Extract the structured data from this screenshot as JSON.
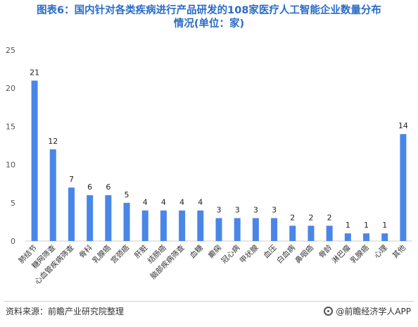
{
  "header": {
    "title_line1": "图表6：国内针对各类疾病进行产品研发的108家医疗人工智能企业数量分布",
    "title_line2": "情况(单位：家)"
  },
  "footer": {
    "source": "资料来源：前瞻产业研究院整理",
    "brand": "@前瞻经济学人APP"
  },
  "colors": {
    "bar": "#4a86e8",
    "title": "#2a6cc6"
  },
  "chart_data": {
    "type": "bar",
    "categories": [
      "肺结节",
      "糖网筛查",
      "心血管疾病筛查",
      "骨科",
      "乳腺癌",
      "宫颈癌",
      "肝脏",
      "结肠癌",
      "脑部疾病筛查",
      "血糖",
      "癫痫",
      "冠心病",
      "甲状腺",
      "血压",
      "白血病",
      "鼻咽癌",
      "骨龄",
      "淋巴瘤",
      "乳腺癌",
      "心理",
      "其他"
    ],
    "values": [
      21,
      12,
      7,
      6,
      6,
      5,
      4,
      4,
      4,
      4,
      3,
      3,
      3,
      3,
      2,
      2,
      2,
      1,
      1,
      1,
      14
    ],
    "ylim": [
      0,
      25
    ],
    "yticks": [
      0,
      5,
      10,
      15,
      20,
      25
    ],
    "grid": false,
    "title": "",
    "xlabel": "",
    "ylabel": ""
  }
}
